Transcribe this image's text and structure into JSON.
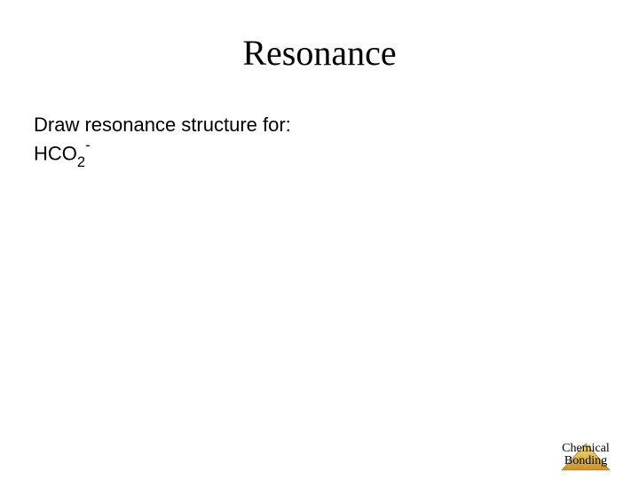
{
  "title": {
    "text": "Resonance",
    "fontsize": 40,
    "color": "#000000"
  },
  "body": {
    "line1": "Draw resonance structure for:",
    "formula_prefix": "HCO",
    "formula_sub": "2",
    "formula_sup": "-",
    "fontsize": 22,
    "color": "#000000"
  },
  "footer": {
    "line1": "Chemical",
    "line2": "Bonding",
    "fontsize": 14,
    "color": "#000000",
    "triangle": {
      "width": 58,
      "height": 34,
      "fill_top": "#f6e27a",
      "fill_bottom": "#c8902a",
      "stroke": "#8a6a1e"
    }
  },
  "background_color": "#ffffff"
}
